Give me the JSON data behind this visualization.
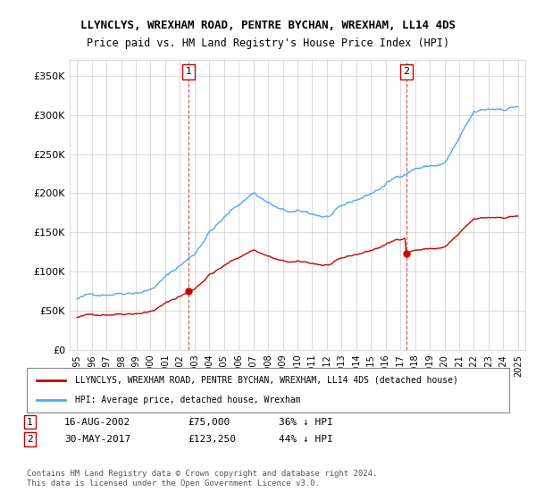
{
  "title": "LLYNCLYS, WREXHAM ROAD, PENTRE BYCHAN, WREXHAM, LL14 4DS",
  "subtitle": "Price paid vs. HM Land Registry's House Price Index (HPI)",
  "hpi_color": "#4da6ff",
  "price_color": "#cc0000",
  "marker_color": "#cc0000",
  "ylim": [
    0,
    370000
  ],
  "yticks": [
    0,
    50000,
    100000,
    150000,
    200000,
    250000,
    300000,
    350000
  ],
  "xlabel": "",
  "ylabel": "",
  "legend_line1": "LLYNCLYS, WREXHAM ROAD, PENTRE BYCHAN, WREXHAM, LL14 4DS (detached house)",
  "legend_line2": "HPI: Average price, detached house, Wrexham",
  "annotation1": {
    "label": "1",
    "date_str": "16-AUG-2002",
    "price_str": "£75,000",
    "pct_str": "36% ↓ HPI"
  },
  "annotation2": {
    "label": "2",
    "date_str": "30-MAY-2017",
    "price_str": "£123,250",
    "pct_str": "44% ↓ HPI"
  },
  "footer": "Contains HM Land Registry data © Crown copyright and database right 2024.\nThis data is licensed under the Open Government Licence v3.0.",
  "background_color": "#ffffff",
  "grid_color": "#cccccc"
}
